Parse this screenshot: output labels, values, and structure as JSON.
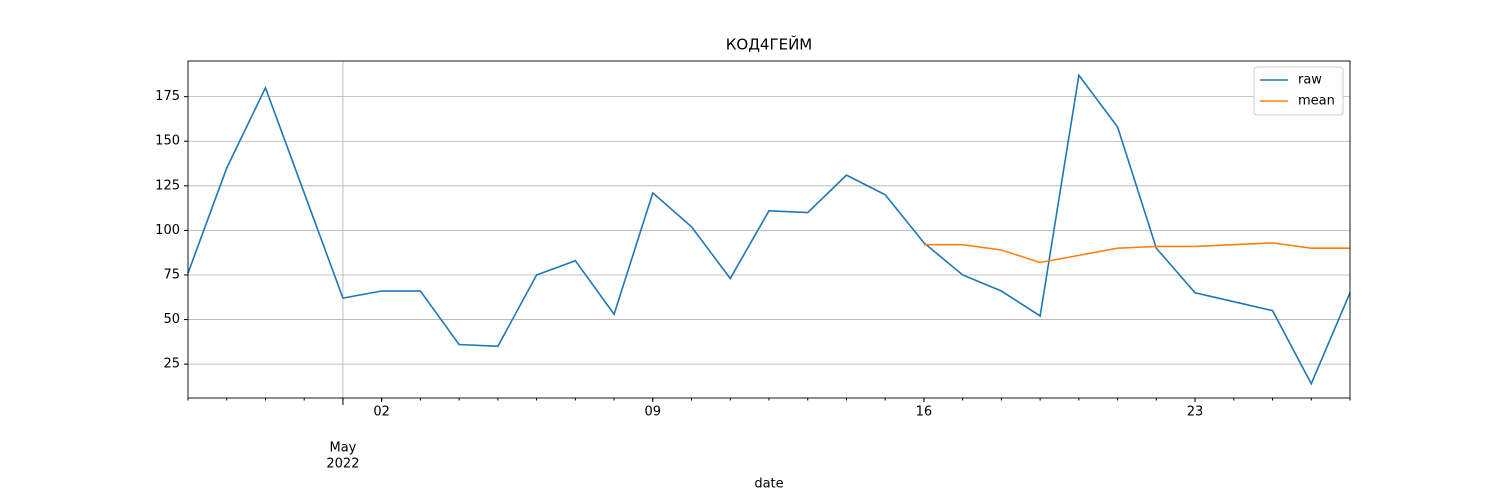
{
  "chart_data": {
    "type": "line",
    "title": "КОД4ГЕЙМ",
    "xlabel": "date",
    "x": [
      "2022-04-27",
      "2022-04-28",
      "2022-04-29",
      "2022-04-30",
      "2022-05-01",
      "2022-05-02",
      "2022-05-03",
      "2022-05-04",
      "2022-05-05",
      "2022-05-06",
      "2022-05-07",
      "2022-05-08",
      "2022-05-09",
      "2022-05-10",
      "2022-05-11",
      "2022-05-12",
      "2022-05-13",
      "2022-05-14",
      "2022-05-15",
      "2022-05-16",
      "2022-05-17",
      "2022-05-18",
      "2022-05-19",
      "2022-05-20",
      "2022-05-21",
      "2022-05-22",
      "2022-05-23",
      "2022-05-24",
      "2022-05-25",
      "2022-05-26",
      "2022-05-27"
    ],
    "series": [
      {
        "name": "raw",
        "color": "#1f77b4",
        "values": [
          76,
          135,
          180,
          121,
          62,
          66,
          66,
          36,
          35,
          75,
          83,
          53,
          121,
          102,
          73,
          111,
          110,
          131,
          120,
          93,
          75,
          66,
          52,
          187,
          158,
          90,
          65,
          60,
          55,
          14,
          65
        ]
      },
      {
        "name": "mean",
        "color": "#ff7f0e",
        "values": [
          null,
          null,
          null,
          null,
          null,
          null,
          null,
          null,
          null,
          null,
          null,
          null,
          null,
          null,
          null,
          null,
          null,
          null,
          null,
          92,
          92,
          89,
          82,
          86,
          90,
          91,
          91,
          92,
          93,
          90,
          90
        ]
      }
    ],
    "xlim": [
      "2022-04-27",
      "2022-05-27"
    ],
    "xticks": [
      {
        "value": "2022-05-01",
        "label": "May",
        "sublabel": "2022"
      },
      {
        "value": "2022-05-02",
        "label": "02"
      },
      {
        "value": "2022-05-09",
        "label": "09"
      },
      {
        "value": "2022-05-16",
        "label": "16"
      },
      {
        "value": "2022-05-23",
        "label": "23"
      }
    ],
    "ylim": [
      6,
      195
    ],
    "yticks": [
      25,
      50,
      75,
      100,
      125,
      150,
      175
    ],
    "grid": true,
    "legend": "upper right"
  }
}
